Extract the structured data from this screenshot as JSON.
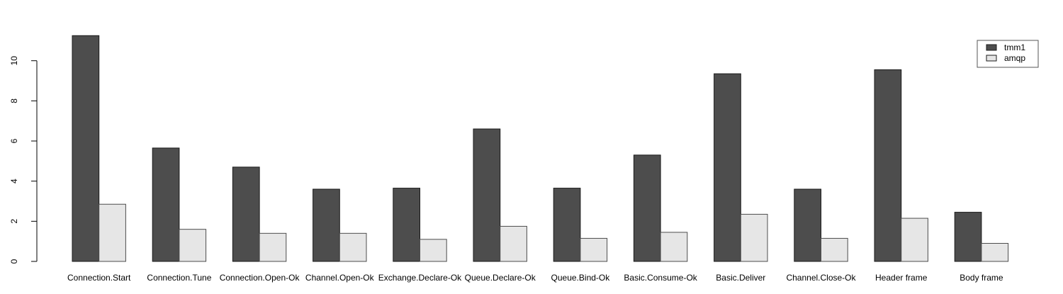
{
  "chart_data": {
    "type": "bar",
    "title": "",
    "xlabel": "",
    "ylabel": "",
    "categories": [
      "Connection.Start",
      "Connection.Tune",
      "Connection.Open-Ok",
      "Channel.Open-Ok",
      "Exchange.Declare-Ok",
      "Queue.Declare-Ok",
      "Queue.Bind-Ok",
      "Basic.Consume-Ok",
      "Basic.Deliver",
      "Channel.Close-Ok",
      "Header frame",
      "Body frame"
    ],
    "series": [
      {
        "name": "tmm1",
        "color": "#4d4d4d",
        "border_color": "#1a1a1a",
        "values": [
          11.25,
          5.65,
          4.7,
          3.6,
          3.65,
          6.6,
          3.65,
          5.3,
          9.35,
          3.6,
          9.55,
          2.45
        ]
      },
      {
        "name": "amqp",
        "color": "#e6e6e6",
        "border_color": "#4d4d4d",
        "values": [
          2.85,
          1.6,
          1.4,
          1.4,
          1.1,
          1.75,
          1.15,
          1.45,
          2.35,
          1.15,
          2.15,
          0.9
        ]
      }
    ],
    "yticks": [
      0,
      2,
      4,
      6,
      8,
      10
    ],
    "ylim": [
      0,
      11.3
    ],
    "grid": false,
    "legend_position": "top-right",
    "legend_labels": [
      "tmm1",
      "amqp"
    ],
    "background_color": "#ffffff",
    "axis_color": "#000000"
  }
}
